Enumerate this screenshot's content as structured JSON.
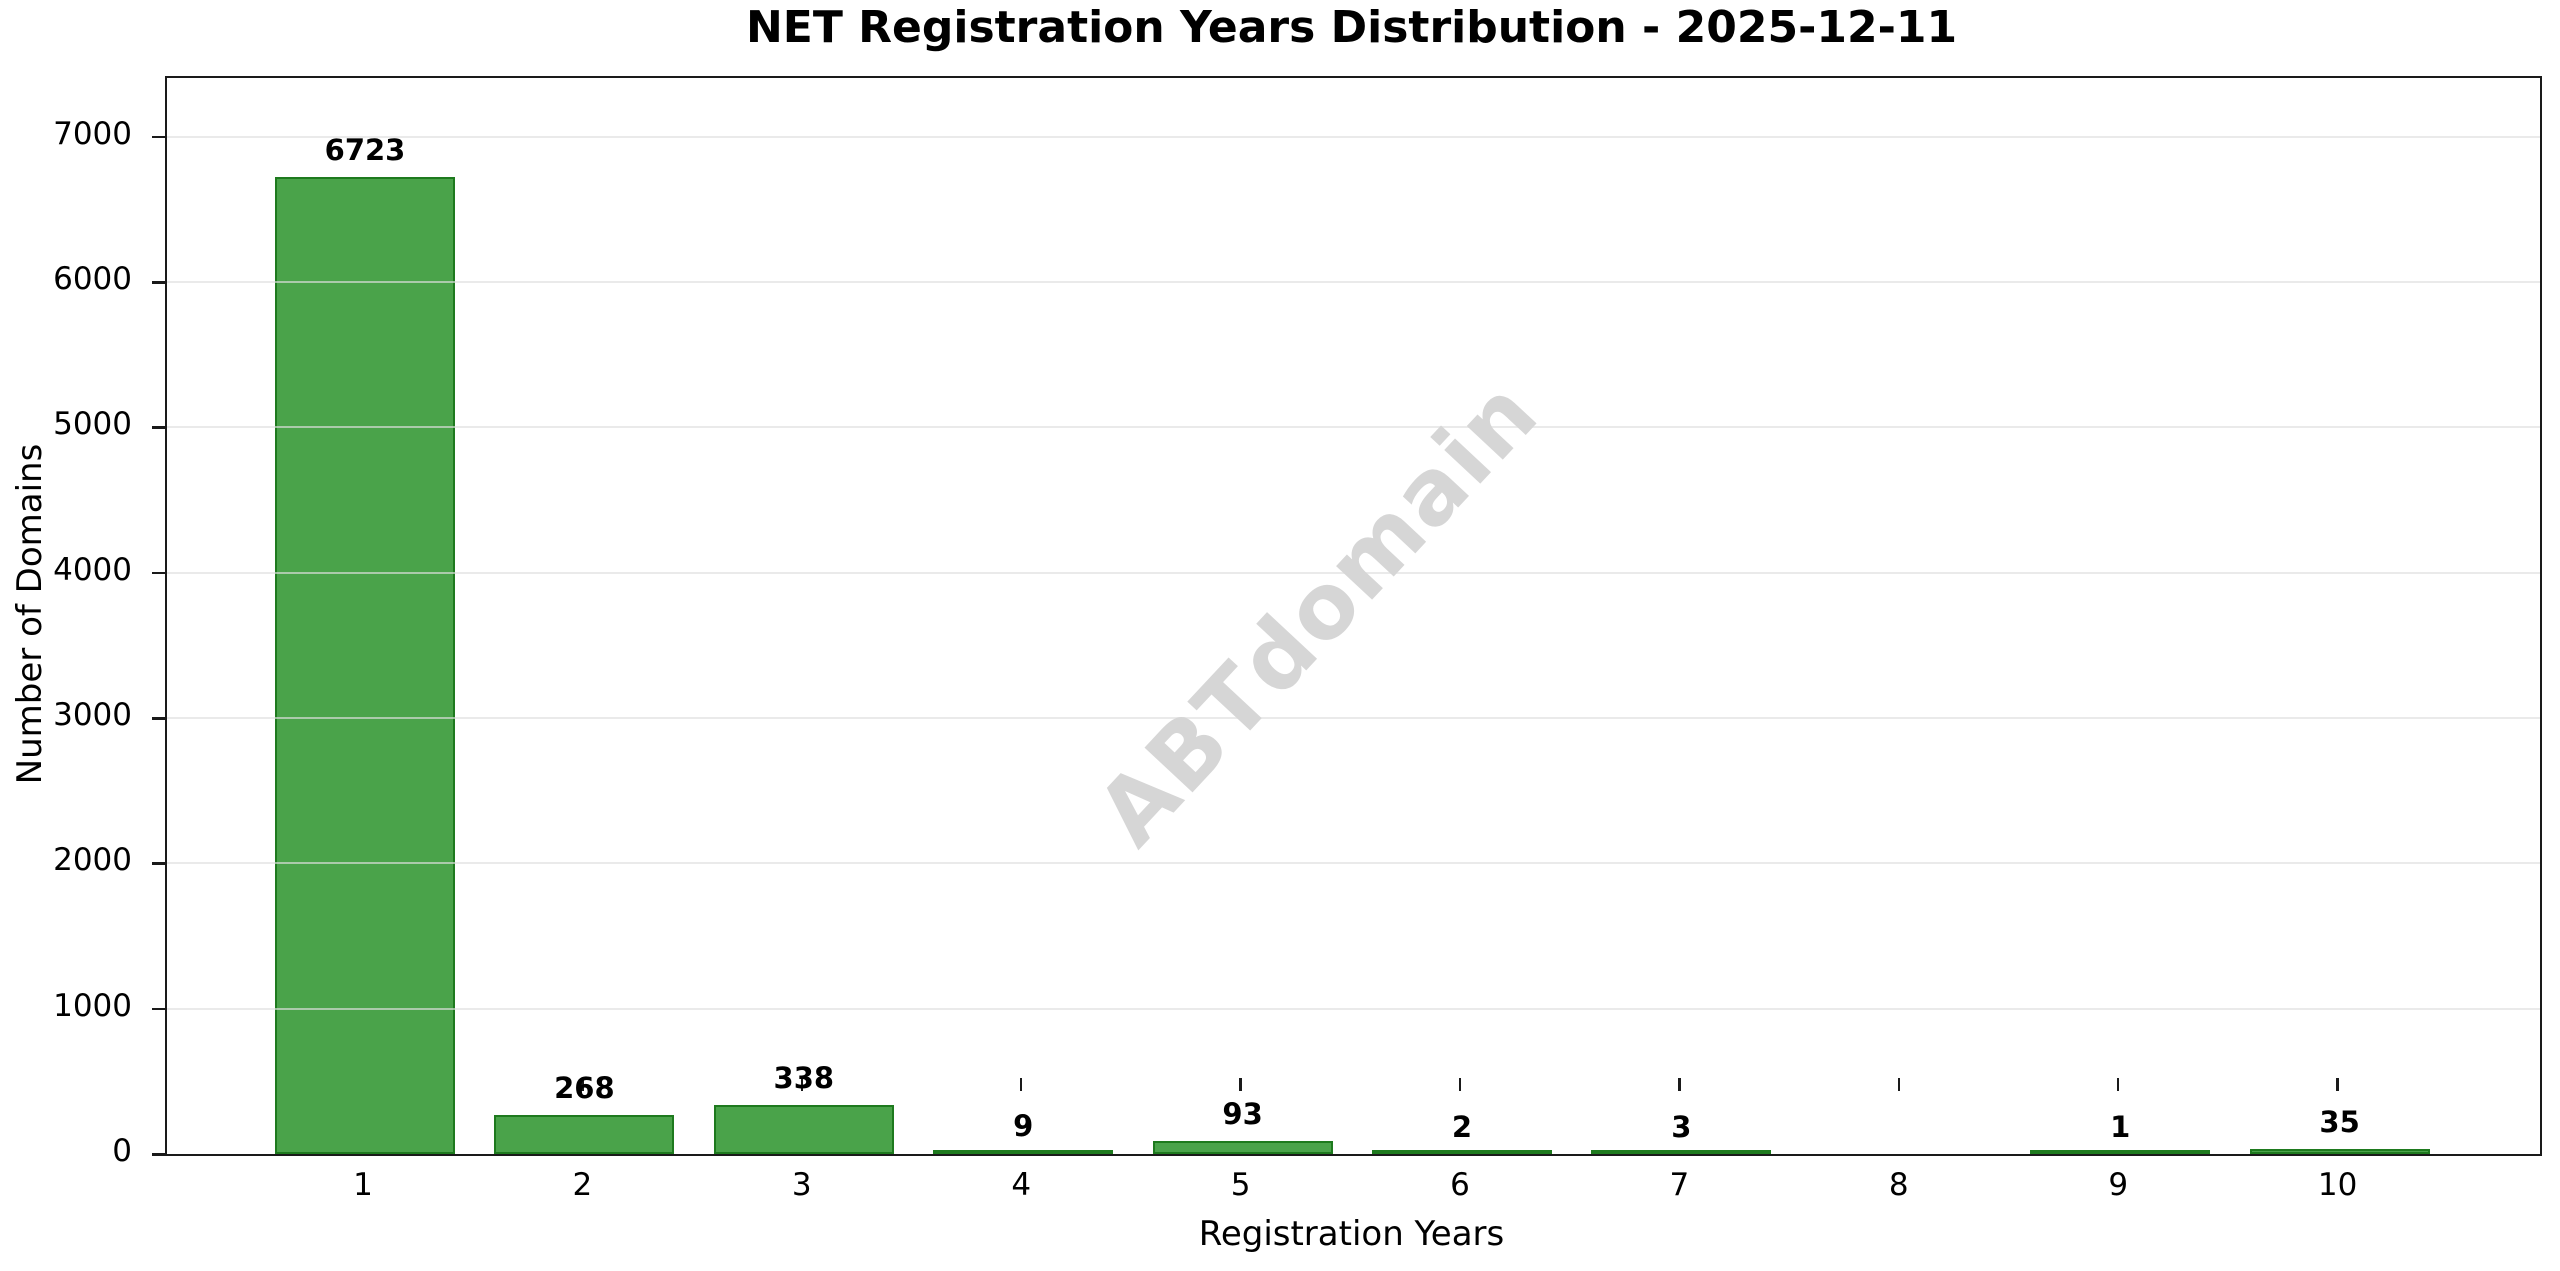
{
  "title": "NET Registration Years Distribution - 2025-12-11",
  "watermark": "ABTdomain",
  "chart_data": {
    "type": "bar",
    "title": "NET Registration Years Distribution - 2025-12-11",
    "xlabel": "Registration Years",
    "ylabel": "Number of Domains",
    "categories": [
      "1",
      "2",
      "3",
      "4",
      "5",
      "6",
      "7",
      "8",
      "9",
      "10"
    ],
    "values": [
      6723,
      268,
      338,
      9,
      93,
      2,
      3,
      0,
      1,
      35
    ],
    "bar_labels": [
      "6723",
      "268",
      "338",
      "9",
      "93",
      "2",
      "3",
      "",
      "1",
      "35"
    ],
    "yticks": [
      0,
      1000,
      2000,
      3000,
      4000,
      5000,
      6000,
      7000
    ],
    "ylim": [
      0,
      7404
    ],
    "grid": true,
    "legend": false,
    "bar_color": "#4aa34a",
    "bar_edge_color": "#1e7a1e",
    "grid_color": "#dedede",
    "axis_color": "#1a1a1a",
    "watermark_color": "#d6d6d6"
  }
}
